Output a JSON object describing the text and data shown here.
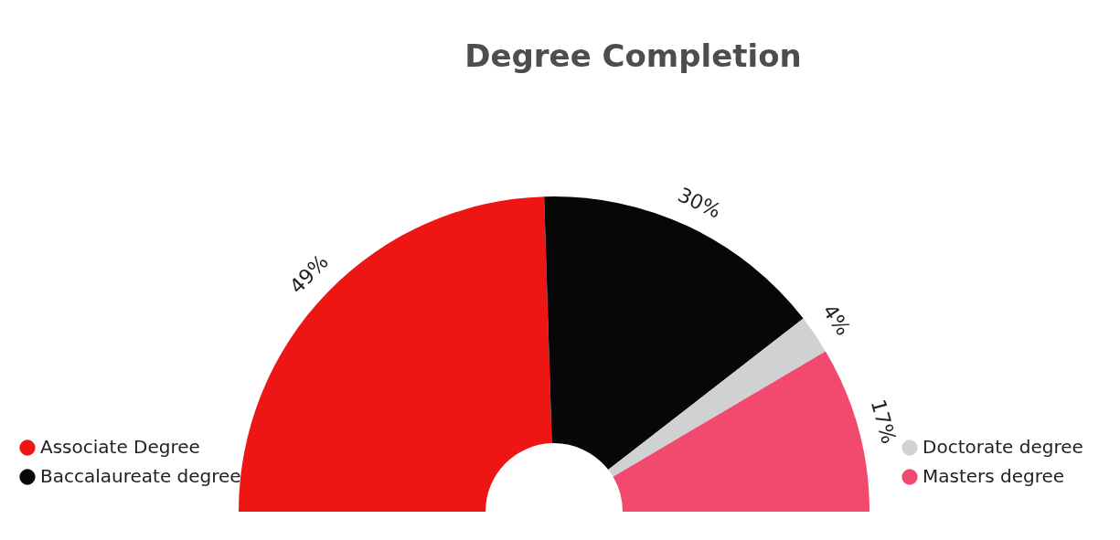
{
  "chart_data": {
    "type": "donut",
    "title": "Degree Completion",
    "categories": [
      "Associate Degree",
      "Baccalaureate degree",
      "Doctorate degree",
      "Masters degree"
    ],
    "values": [
      49,
      30,
      4,
      17
    ],
    "colors": [
      "#ee1515",
      "#070707",
      "#d0d1d3",
      "#f2496e"
    ],
    "value_labels": [
      "49%",
      "30%",
      "4%",
      "17%"
    ],
    "legend": "bottom"
  }
}
